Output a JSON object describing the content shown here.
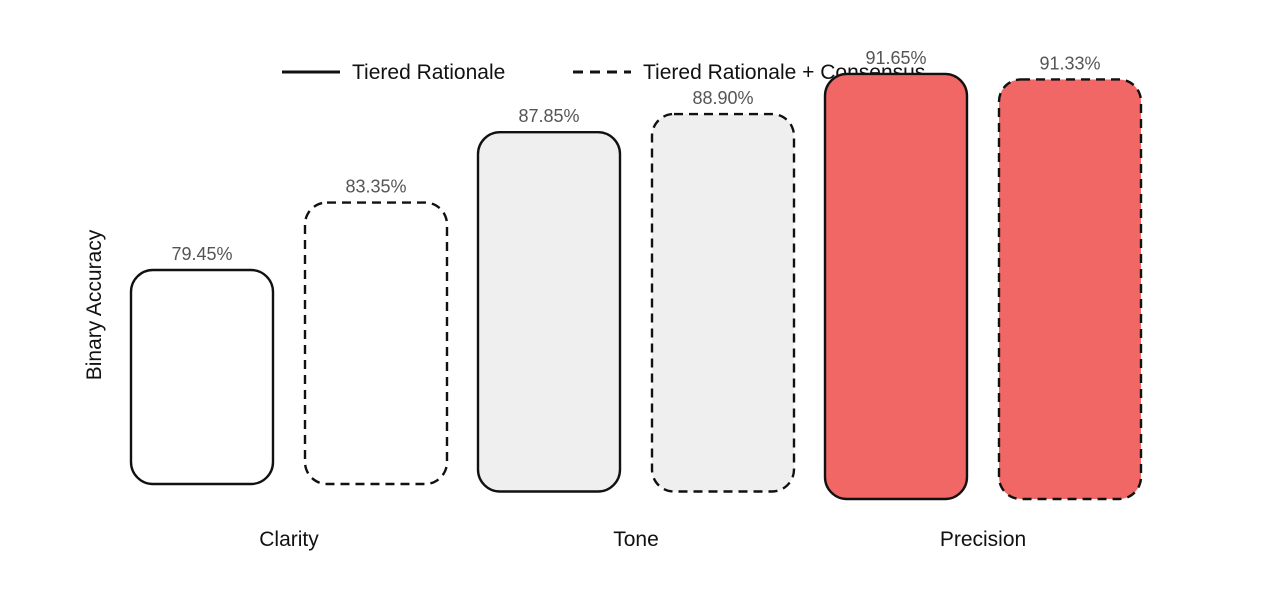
{
  "chart_data": {
    "type": "bar",
    "title": "",
    "xlabel": "",
    "ylabel": "Binary Accuracy",
    "categories": [
      "Clarity",
      "Tone",
      "Precision"
    ],
    "series": [
      {
        "name": "Tiered Rationale",
        "line_style": "solid",
        "values": [
          79.45,
          87.85,
          91.65
        ],
        "value_labels": [
          "79.45%",
          "87.85%",
          "91.65%"
        ]
      },
      {
        "name": "Tiered Rationale + Consensus",
        "line_style": "dashed",
        "values": [
          83.35,
          88.9,
          91.33
        ],
        "value_labels": [
          "83.35%",
          "88.90%",
          "91.33%"
        ]
      }
    ],
    "category_fill_colors": [
      "#ffffff",
      "#efefef",
      "#f06765"
    ],
    "stroke_color": "#111111",
    "label_color": "#555555",
    "legend_position": "top-center",
    "grid": false,
    "y_axis_visible": false
  }
}
